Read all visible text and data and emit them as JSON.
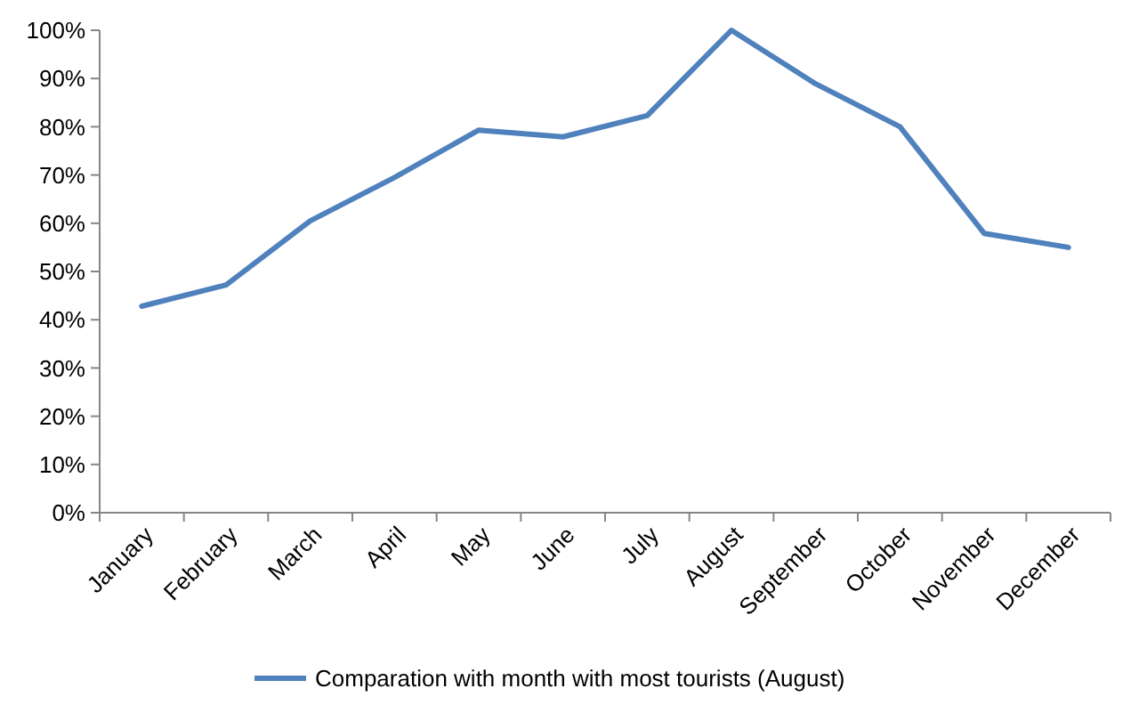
{
  "chart_data": {
    "type": "line",
    "categories": [
      "January",
      "February",
      "March",
      "April",
      "May",
      "June",
      "July",
      "August",
      "September",
      "October",
      "November",
      "December"
    ],
    "series": [
      {
        "name": "Comparation with month with most tourists (August)",
        "color": "#4f81bd",
        "values": [
          42.8,
          47.2,
          60.5,
          69.5,
          79.3,
          77.9,
          82.3,
          100,
          88.9,
          80,
          57.9,
          55
        ]
      }
    ],
    "ylim": [
      0,
      100
    ],
    "yticks": [
      {
        "value": 0,
        "label": "0%"
      },
      {
        "value": 10,
        "label": "10%"
      },
      {
        "value": 20,
        "label": "20%"
      },
      {
        "value": 30,
        "label": "30%"
      },
      {
        "value": 40,
        "label": "40%"
      },
      {
        "value": 50,
        "label": "50%"
      },
      {
        "value": 60,
        "label": "60%"
      },
      {
        "value": 70,
        "label": "70%"
      },
      {
        "value": 80,
        "label": "80%"
      },
      {
        "value": 90,
        "label": "90%"
      },
      {
        "value": 100,
        "label": "100%"
      }
    ],
    "grid": false,
    "legend": "bottom",
    "marker": "none",
    "line_style": "solid"
  }
}
